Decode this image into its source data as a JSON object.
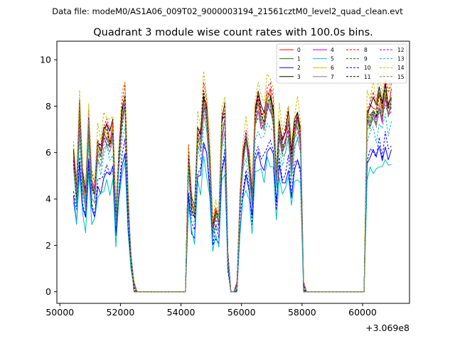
{
  "chart_data": {
    "type": "line",
    "suptitle": "Data file: modeM0/AS1A06_009T02_9000003194_21561cztM0_level2_quad_clean.evt",
    "title": "Quadrant 3 module wise count rates with 100.0s bins.",
    "xlabel": "",
    "ylabel": "",
    "offset_label": "+3.069e8",
    "xlim": [
      49900,
      61550
    ],
    "ylim": [
      -0.5,
      10.8
    ],
    "xticks": [
      50000,
      52000,
      54000,
      56000,
      58000,
      60000
    ],
    "yticks": [
      0,
      2,
      4,
      6,
      8,
      10
    ],
    "xtick_labels": [
      "50000",
      "52000",
      "54000",
      "56000",
      "58000",
      "60000"
    ],
    "ytick_labels": [
      "0",
      "2",
      "4",
      "6",
      "8",
      "10"
    ],
    "legend_loc": "upper right",
    "legend_ncol": 4,
    "base_profile": {
      "x": [
        50450,
        50550,
        50650,
        50750,
        50850,
        50950,
        51050,
        51150,
        51250,
        51350,
        51450,
        51550,
        51650,
        51750,
        51850,
        51950,
        52050,
        52150,
        52250,
        52350,
        52450,
        52550,
        54150,
        54250,
        54350,
        54450,
        54550,
        54650,
        54750,
        54850,
        54950,
        55050,
        55150,
        55250,
        55350,
        55450,
        55550,
        55650,
        55750,
        55850,
        55950,
        56050,
        56150,
        56250,
        56350,
        56450,
        56550,
        56650,
        56750,
        56850,
        56950,
        57050,
        57150,
        57250,
        57350,
        57450,
        57550,
        57650,
        57750,
        57850,
        57950,
        58050,
        58150,
        58250,
        60050,
        60150,
        60250,
        60350,
        60450,
        60550,
        60650,
        60750,
        60850,
        60950
      ],
      "y": [
        6.0,
        4.4,
        8.0,
        5.0,
        4.2,
        7.6,
        4.8,
        4.5,
        6.6,
        6.2,
        7.0,
        7.1,
        6.7,
        7.2,
        3.2,
        6.0,
        7.8,
        8.6,
        4.0,
        1.5,
        0.2,
        0.0,
        0.0,
        6.0,
        3.8,
        3.5,
        7.0,
        6.8,
        8.6,
        8.0,
        6.0,
        3.0,
        3.5,
        3.2,
        7.2,
        7.9,
        1.5,
        0.0,
        0.0,
        0.2,
        4.0,
        6.0,
        7.0,
        5.8,
        4.2,
        7.6,
        8.4,
        7.8,
        7.6,
        8.6,
        8.6,
        8.0,
        5.0,
        7.4,
        6.6,
        6.8,
        7.6,
        5.8,
        7.2,
        7.6,
        7.0,
        0.2,
        0.0,
        0.0,
        0.0,
        7.8,
        7.9,
        8.2,
        7.8,
        8.6,
        8.0,
        9.0,
        8.2,
        8.6
      ]
    },
    "series": [
      {
        "name": "0",
        "color": "#ff0000",
        "dash": false,
        "scale": 0.99
      },
      {
        "name": "1",
        "color": "#008000",
        "dash": false,
        "scale": 0.95
      },
      {
        "name": "2",
        "color": "#0000ff",
        "dash": false,
        "scale": 0.72
      },
      {
        "name": "3",
        "color": "#000000",
        "dash": false,
        "scale": 1.0
      },
      {
        "name": "4",
        "color": "#bf00bf",
        "dash": false,
        "scale": 0.93
      },
      {
        "name": "5",
        "color": "#00bfbf",
        "dash": false,
        "scale": 0.65
      },
      {
        "name": "6",
        "color": "#bfbf00",
        "dash": false,
        "scale": 0.97
      },
      {
        "name": "7",
        "color": "#808080",
        "dash": false,
        "scale": 0.9
      },
      {
        "name": "8",
        "color": "#ff0000",
        "dash": true,
        "scale": 1.02
      },
      {
        "name": "9",
        "color": "#008000",
        "dash": true,
        "scale": 0.92
      },
      {
        "name": "10",
        "color": "#0000ff",
        "dash": true,
        "scale": 0.75
      },
      {
        "name": "11",
        "color": "#000000",
        "dash": true,
        "scale": 0.98
      },
      {
        "name": "12",
        "color": "#bf00bf",
        "dash": true,
        "scale": 0.96
      },
      {
        "name": "13",
        "color": "#00bfbf",
        "dash": true,
        "scale": 0.85
      },
      {
        "name": "14",
        "color": "#bfbf00",
        "dash": true,
        "scale": 1.08
      },
      {
        "name": "15",
        "color": "#808080",
        "dash": true,
        "scale": 0.94
      }
    ]
  }
}
